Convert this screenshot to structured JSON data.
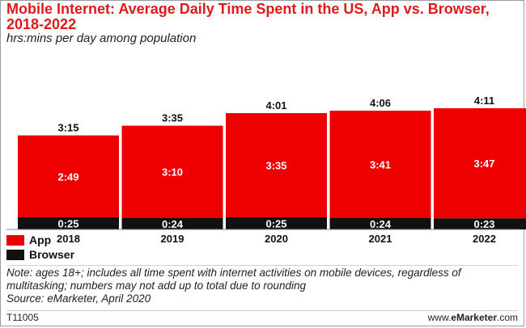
{
  "header": {
    "title": "Mobile Internet: Average Daily Time Spent in the US, App vs. Browser, 2018-2022",
    "subtitle": "hrs:mins per day among population"
  },
  "colors": {
    "app": "#ee0000",
    "browser": "#111111",
    "title": "#e01a1a"
  },
  "chart_data": {
    "type": "bar",
    "stacked": true,
    "categories": [
      "2018",
      "2019",
      "2020",
      "2021",
      "2022"
    ],
    "series": [
      {
        "name": "App",
        "values": [
          "2:49",
          "3:10",
          "3:35",
          "3:41",
          "3:47"
        ]
      },
      {
        "name": "Browser",
        "values": [
          "0:25",
          "0:24",
          "0:25",
          "0:24",
          "0:23"
        ]
      }
    ],
    "totals": [
      "3:15",
      "3:35",
      "4:01",
      "4:06",
      "4:11"
    ],
    "grid": false,
    "legend_position": "bottom-left"
  },
  "legend": {
    "app_label": "App",
    "browser_label": "Browser"
  },
  "footer": {
    "note": "Note: ages 18+; includes all time spent with internet activities on mobile devices, regardless of multitasking; numbers may not add up to total due to rounding",
    "source": "Source: eMarketer, April 2020",
    "code": "T11005",
    "brand_prefix": "www.",
    "brand_bold": "eMarketer",
    "brand_suffix": ".com"
  }
}
